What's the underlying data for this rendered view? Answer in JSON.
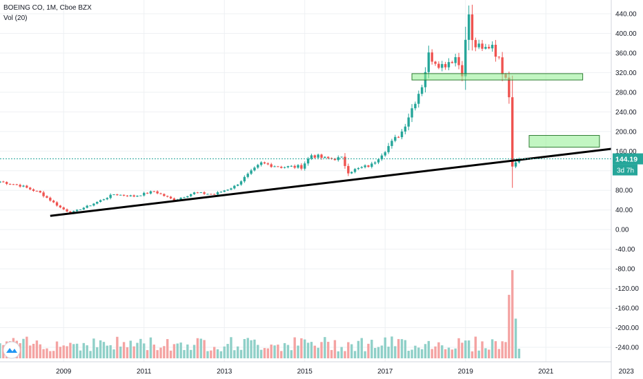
{
  "legend": {
    "symbol_line": "BOEING CO, 1M, Cboe BZX",
    "volume_line": "Vol (20)"
  },
  "colors": {
    "up": "#26a69a",
    "down": "#ef5350",
    "up_volume": "#8fd0c8",
    "down_volume": "#f4a3a2",
    "grid": "#eef0f3",
    "trendline": "#000000",
    "zone_fill": "#90ee90",
    "zone_stroke": "#2e7d32",
    "price_label_bg": "#26a69a"
  },
  "price_label": {
    "value": "144.19",
    "countdown": "3d 7h"
  },
  "chart_data": {
    "type": "candlestick",
    "series_name": "BOEING CO",
    "interval": "1M",
    "exchange": "Cboe BZX",
    "y_axis": {
      "ticks": [
        "440.00",
        "400.00",
        "360.00",
        "320.00",
        "280.00",
        "240.00",
        "200.00",
        "160.00",
        "120.00",
        "80.00",
        "40.00",
        "0.00",
        "-40.00",
        "-80.00",
        "-120.00",
        "-160.00",
        "-200.00",
        "-240.00"
      ],
      "range": [
        -255,
        465
      ]
    },
    "x_axis": {
      "ticks": [
        "2009",
        "2011",
        "2013",
        "2015",
        "2017",
        "2019",
        "2021",
        "2023"
      ],
      "range": [
        "2007-06",
        "2023-06"
      ]
    },
    "last_price": 144.19,
    "anchors": [
      {
        "date": "2007-06",
        "price": 98
      },
      {
        "date": "2007-12",
        "price": 90
      },
      {
        "date": "2008-06",
        "price": 75
      },
      {
        "date": "2008-12",
        "price": 45
      },
      {
        "date": "2009-03",
        "price": 34
      },
      {
        "date": "2009-09",
        "price": 50
      },
      {
        "date": "2010-04",
        "price": 72
      },
      {
        "date": "2010-10",
        "price": 68
      },
      {
        "date": "2011-04",
        "price": 78
      },
      {
        "date": "2011-10",
        "price": 60
      },
      {
        "date": "2012-04",
        "price": 75
      },
      {
        "date": "2012-10",
        "price": 72
      },
      {
        "date": "2013-04",
        "price": 88
      },
      {
        "date": "2013-12",
        "price": 135
      },
      {
        "date": "2014-06",
        "price": 128
      },
      {
        "date": "2014-12",
        "price": 128
      },
      {
        "date": "2015-03",
        "price": 152
      },
      {
        "date": "2015-07",
        "price": 145
      },
      {
        "date": "2015-12",
        "price": 145
      },
      {
        "date": "2016-02",
        "price": 118
      },
      {
        "date": "2016-09",
        "price": 132
      },
      {
        "date": "2016-12",
        "price": 155
      },
      {
        "date": "2017-06",
        "price": 200
      },
      {
        "date": "2017-12",
        "price": 295
      },
      {
        "date": "2018-02",
        "price": 355
      },
      {
        "date": "2018-06",
        "price": 335
      },
      {
        "date": "2018-10",
        "price": 352
      },
      {
        "date": "2018-12",
        "price": 322
      },
      {
        "date": "2019-02",
        "price": 440
      },
      {
        "date": "2019-03",
        "price": 381
      },
      {
        "date": "2019-06",
        "price": 364
      },
      {
        "date": "2019-09",
        "price": 380
      },
      {
        "date": "2019-12",
        "price": 325
      },
      {
        "date": "2020-01",
        "price": 318
      },
      {
        "date": "2020-02",
        "price": 275
      },
      {
        "date": "2020-03",
        "price": 130
      },
      {
        "date": "2020-04",
        "price": 141
      },
      {
        "date": "2020-05",
        "price": 144
      }
    ],
    "volume": {
      "type": "bar",
      "note_spikes": [
        {
          "date": "2020-02",
          "relative": 0.72
        },
        {
          "date": "2020-03",
          "relative": 1.0
        },
        {
          "date": "2020-04",
          "relative": 0.45
        }
      ]
    },
    "annotations": {
      "trendline": {
        "start": {
          "date": "2008-09",
          "price": 28
        },
        "end": {
          "date": "2022-09",
          "price": 165
        }
      },
      "zones": [
        {
          "name": "resistance-zone",
          "from": "2017-09",
          "to": "2021-12",
          "low": 305,
          "high": 318
        },
        {
          "name": "target-zone",
          "from": "2020-08",
          "to": "2022-05",
          "low": 168,
          "high": 192
        }
      ],
      "last_price_line": 144.19
    }
  }
}
